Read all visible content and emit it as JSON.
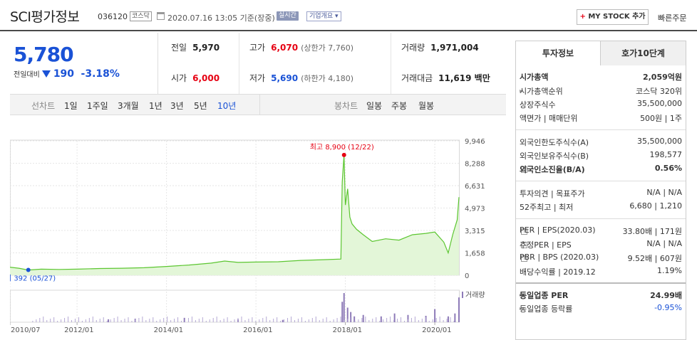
{
  "header": {
    "stock_name": "SCI평가정보",
    "stock_code": "036120",
    "market_badge": "코스닥",
    "date_text": "2020.07.16 13:05 기준(장중)",
    "realtime_badge": "실시간",
    "company_badge": "기업개요 ▾",
    "mystock_plus": "+",
    "mystock_label": "MY STOCK 추가",
    "quick_order": "빠른주문"
  },
  "price": {
    "current": "5,780",
    "change_label": "전일대비",
    "change_value": "190",
    "change_pct": "-3.18%",
    "color_down": "#1a52d6"
  },
  "quote": {
    "prev_close_label": "전일",
    "prev_close": "5,970",
    "open_label": "시가",
    "open": "6,000",
    "high_label": "고가",
    "high": "6,070",
    "upper_limit": "(상한가 7,760)",
    "low_label": "저가",
    "low": "5,690",
    "lower_limit": "(하한가 4,180)",
    "volume_label": "거래량",
    "volume": "1,971,004",
    "amount_label": "거래대금",
    "amount": "11,619 백만"
  },
  "chart_tabs": {
    "line_label": "선차트",
    "periods": [
      "1일",
      "1주일",
      "3개월",
      "1년",
      "3년",
      "5년",
      "10년"
    ],
    "selected": "10년",
    "candle_label": "봉차트",
    "candle_periods": [
      "일봉",
      "주봉",
      "월봉"
    ]
  },
  "chart_data": {
    "type": "area",
    "x_ticks": [
      "2010/07",
      "2012/01",
      "2014/01",
      "2016/01",
      "2018/01",
      "2020/01"
    ],
    "y_ticks": [
      "9,946",
      "8,288",
      "6,631",
      "4,973",
      "3,315",
      "1,658",
      "0"
    ],
    "ylim": [
      0,
      9946
    ],
    "xlim": [
      2010.5,
      2020.54
    ],
    "high_annotation": "최고 8,900 (12/22)",
    "low_annotation": "최저 392 (05/27)",
    "high_point": {
      "x": 2017.97,
      "y": 8900
    },
    "low_point": {
      "x": 2010.91,
      "y": 392
    },
    "volume_legend": "거래량",
    "line_color": "#5cc631",
    "fill_color": "#e3f6d8",
    "price_series": {
      "x": [
        2010.5,
        2010.7,
        2010.91,
        2011.2,
        2011.6,
        2012.0,
        2012.5,
        2013.0,
        2013.5,
        2014.0,
        2014.5,
        2015.0,
        2015.3,
        2015.6,
        2016.0,
        2016.5,
        2017.0,
        2017.5,
        2017.9,
        2017.93,
        2017.97,
        2018.0,
        2018.05,
        2018.1,
        2018.15,
        2018.25,
        2018.4,
        2018.6,
        2018.9,
        2019.2,
        2019.5,
        2019.8,
        2020.0,
        2020.2,
        2020.3,
        2020.4,
        2020.5,
        2020.54
      ],
      "y": [
        600,
        520,
        392,
        450,
        430,
        450,
        500,
        520,
        560,
        650,
        760,
        900,
        1050,
        950,
        980,
        1000,
        1100,
        1150,
        1200,
        6900,
        8900,
        5200,
        6400,
        4300,
        3800,
        3400,
        3000,
        2500,
        2700,
        2600,
        3000,
        3100,
        3200,
        2450,
        1650,
        3000,
        4100,
        5780
      ]
    },
    "volume_series": {
      "x": [
        2012.7,
        2013.3,
        2014.4,
        2015.6,
        2016.6,
        2017.93,
        2017.97,
        2018.05,
        2018.12,
        2018.2,
        2018.4,
        2018.8,
        2019.1,
        2019.4,
        2019.8,
        2020.0,
        2020.3,
        2020.45,
        2020.54
      ],
      "y": [
        0.1,
        0.12,
        0.15,
        0.1,
        0.08,
        0.7,
        1.0,
        0.5,
        0.35,
        0.2,
        0.25,
        0.2,
        0.3,
        0.25,
        0.22,
        0.45,
        0.2,
        0.3,
        0.85
      ]
    }
  },
  "right_panel": {
    "tab_active": "투자정보",
    "tab_inactive": "호가10단계",
    "rows": [
      {
        "k": "시가총액",
        "v": "2,059억원"
      },
      {
        "k": "시가총액순위",
        "v": "코스닥 320위"
      },
      {
        "k": "상장주식수",
        "v": "35,500,000"
      },
      {
        "k": "액면가 | 매매단위",
        "v": "500원 | 1주"
      },
      {
        "k": "외국인한도주식수(A)",
        "v": "35,500,000"
      },
      {
        "k": "외국인보유주식수(B)",
        "v": "198,577"
      },
      {
        "k": "외국인소진율(B/A)",
        "v": "0.56%"
      },
      {
        "k": "투자의견 | 목표주가",
        "v": "N/A | N/A"
      },
      {
        "k": "52주최고 | 최저",
        "v": "6,680 | 1,210"
      },
      {
        "k": "PER | EPS(2020.03)",
        "v": "33.80배 | 171원"
      },
      {
        "k": "추정PER | EPS",
        "v": "N/A | N/A"
      },
      {
        "k": "PBR | BPS (2020.03)",
        "v": "9.52배 | 607원"
      },
      {
        "k": "배당수익률 | 2019.12",
        "v": "1.19%"
      },
      {
        "k": "동일업종 PER",
        "v": "24.99배"
      },
      {
        "k": "동일업종 등락률",
        "v": "-0.95%"
      }
    ]
  }
}
